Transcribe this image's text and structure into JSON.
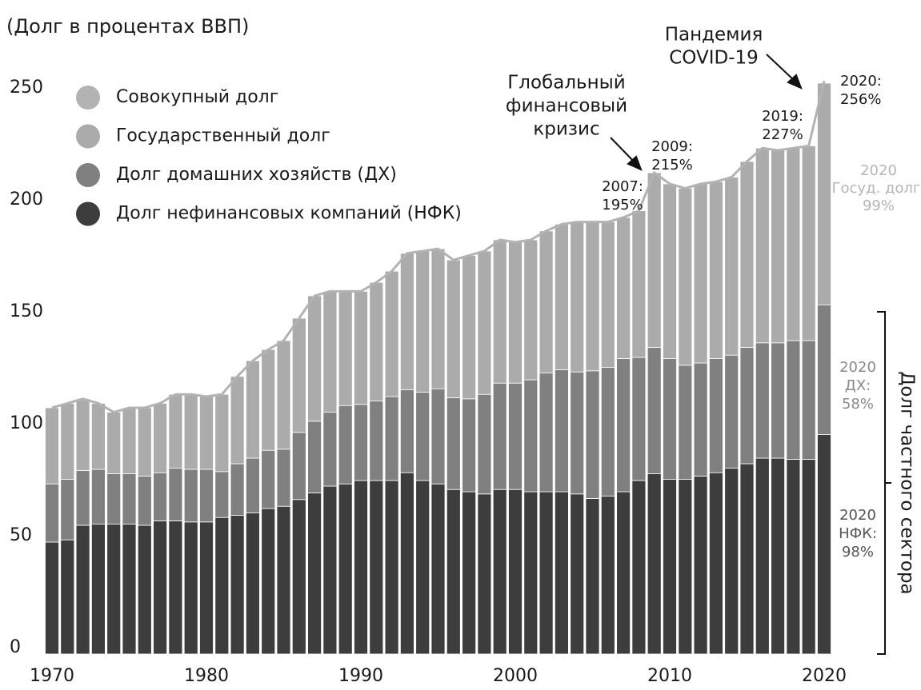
{
  "chart_data": {
    "type": "stacked_bar",
    "title": "(Долг в процентах ВВП)",
    "x": [
      1970,
      1971,
      1972,
      1973,
      1974,
      1975,
      1976,
      1977,
      1978,
      1979,
      1980,
      1981,
      1982,
      1983,
      1984,
      1985,
      1986,
      1987,
      1988,
      1989,
      1990,
      1991,
      1992,
      1993,
      1994,
      1995,
      1996,
      1997,
      1998,
      1999,
      2000,
      2001,
      2002,
      2003,
      2004,
      2005,
      2006,
      2007,
      2008,
      2009,
      2010,
      2011,
      2012,
      2013,
      2014,
      2015,
      2016,
      2017,
      2018,
      2019,
      2020
    ],
    "xlim": [
      1969.5,
      2020.5
    ],
    "xticks": [
      1970,
      1980,
      1990,
      2000,
      2010,
      2020
    ],
    "ylim": [
      0,
      260
    ],
    "yticks": [
      0,
      50,
      100,
      150,
      200,
      250
    ],
    "grid": false,
    "legend": "upper left",
    "series": [
      {
        "name": "Совокупный долг",
        "type": "line",
        "color": "#b3b3b3",
        "values": [
          110,
          112,
          114,
          112,
          108,
          110,
          110,
          112,
          116,
          116,
          115,
          116,
          124,
          131,
          136,
          140,
          150,
          160,
          162,
          162,
          162,
          166,
          171,
          179,
          180,
          181,
          176,
          178,
          180,
          185,
          184,
          185,
          189,
          192,
          193,
          193,
          193,
          195,
          198,
          215,
          210,
          208,
          210,
          211,
          213,
          220,
          226,
          225,
          226,
          227,
          256
        ]
      },
      {
        "name": "Государственный долг",
        "color": "#ababab",
        "values": [
          34,
          34,
          32,
          29.5,
          27.5,
          29.5,
          30.5,
          31,
          33,
          33.5,
          32.5,
          34.5,
          39,
          43.5,
          45,
          48.5,
          51,
          56,
          54,
          51,
          50.5,
          53,
          56,
          61,
          63,
          62.5,
          61.5,
          64,
          64,
          64,
          63,
          62.5,
          63.5,
          65,
          67,
          66.5,
          65,
          63,
          65.5,
          78,
          78,
          79,
          80,
          79,
          79.5,
          83,
          87,
          86,
          86,
          87,
          99
        ]
      },
      {
        "name": "Долг домашних хозяйств (ДХ)",
        "color": "#808080",
        "values": [
          26,
          27,
          24.5,
          24.5,
          22.5,
          22.5,
          22,
          21.5,
          23.5,
          23.5,
          23.5,
          20.5,
          23,
          24.5,
          26,
          25.5,
          30,
          32,
          33,
          35,
          34,
          35.5,
          37.5,
          37,
          39.5,
          42.5,
          41,
          41.5,
          44.5,
          47.5,
          47.5,
          50,
          53,
          54.5,
          54.5,
          57,
          57.5,
          59.5,
          55,
          56.5,
          54,
          51,
          50.5,
          51,
          50.5,
          52,
          51.5,
          51.5,
          53,
          53,
          58
        ]
      },
      {
        "name": "Долг нефинансовых компаний (НФК)",
        "color": "#3d3d3d",
        "values": [
          50,
          51,
          57.5,
          58,
          58,
          58,
          57.5,
          59.5,
          59.5,
          59,
          59,
          61,
          62,
          63,
          65,
          66,
          69,
          72,
          75,
          76,
          77.5,
          77.5,
          77.5,
          81,
          77.5,
          76,
          73.5,
          72.5,
          71.5,
          73.5,
          73.5,
          72.5,
          72.5,
          72.5,
          71.5,
          69.5,
          70.5,
          72.5,
          77.5,
          80.5,
          78,
          78,
          79.5,
          81,
          83,
          85,
          87.5,
          87.5,
          87,
          87,
          98
        ]
      }
    ],
    "annotations": [
      {
        "lines": [
          "Пандемия",
          "COVID-19"
        ]
      },
      {
        "lines": [
          "Глобальный",
          "финансовый",
          "кризис"
        ]
      },
      {
        "lines": [
          "2009:",
          "215%"
        ]
      },
      {
        "lines": [
          "2007:",
          "195%"
        ]
      },
      {
        "lines": [
          "2019:",
          "227%"
        ]
      },
      {
        "lines": [
          "2020:",
          "256%"
        ]
      },
      {
        "lines": [
          "2020",
          "Госуд. долг:",
          "99%"
        ]
      },
      {
        "lines": [
          "2020",
          "ДХ:",
          "58%"
        ]
      },
      {
        "lines": [
          "2020",
          "НФК:",
          "98%"
        ]
      },
      {
        "lines": [
          "Долг частного сектора"
        ]
      }
    ]
  }
}
